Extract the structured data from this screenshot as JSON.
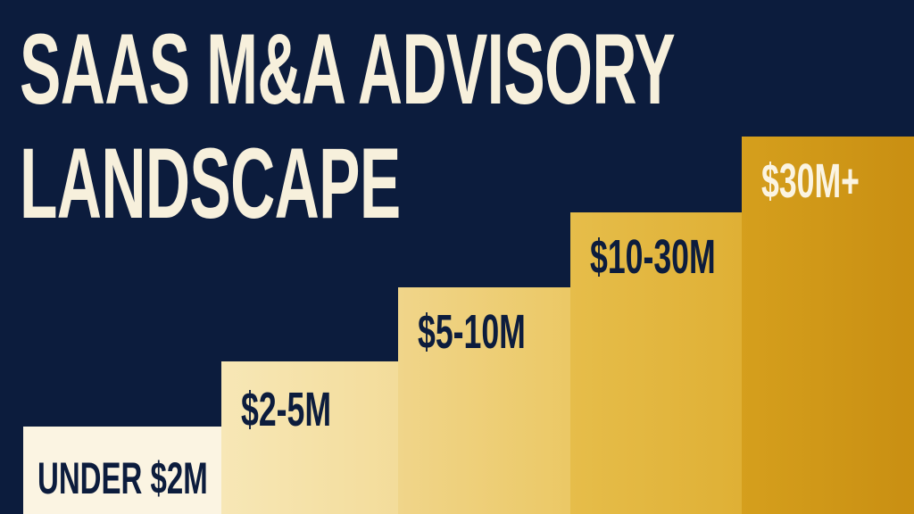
{
  "title": {
    "line1": "SAAS M&A ADVISORY",
    "line2": "LANDSCAPE"
  },
  "steps": [
    {
      "label": "UNDER $2M"
    },
    {
      "label": "$2-5M"
    },
    {
      "label": "$5-10M"
    },
    {
      "label": "$10-30M"
    },
    {
      "label": "$30M+"
    }
  ],
  "colors": {
    "background": "#0c1c3d",
    "title_text": "#f7f0dc",
    "step_1": "#fbf4e2",
    "step_2": "#f5e2a8",
    "step_3": "#eecf78",
    "step_4": "#e2b63f",
    "step_5": "#cf9718",
    "dark_label": "#0c1c3d",
    "light_label": "#fbf4e2"
  }
}
